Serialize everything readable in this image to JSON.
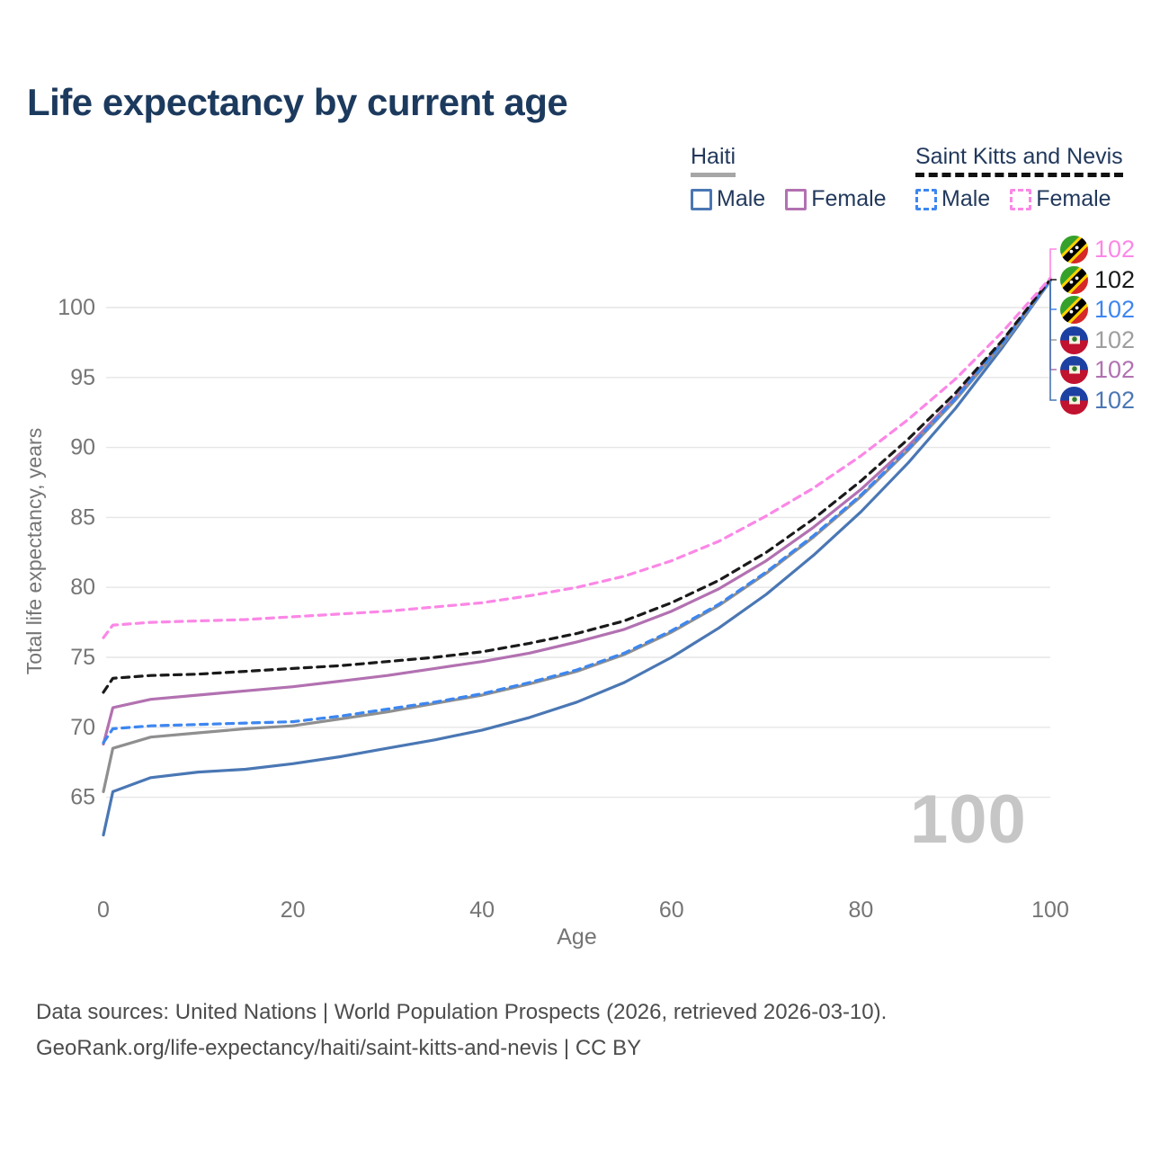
{
  "title": "Life expectancy by current age",
  "legend": {
    "groups": [
      {
        "name": "Haiti",
        "underline_style": "solid",
        "items": [
          {
            "label": "Male",
            "color": "#4a77b4",
            "dashed": false
          },
          {
            "label": "Female",
            "color": "#b271b1",
            "dashed": false
          }
        ]
      },
      {
        "name": "Saint Kitts and Nevis",
        "underline_style": "dashed",
        "items": [
          {
            "label": "Male",
            "color": "#3d86f0",
            "dashed": true
          },
          {
            "label": "Female",
            "color": "#fb87e6",
            "dashed": true
          }
        ]
      }
    ]
  },
  "chart_data": {
    "type": "line",
    "xlabel": "Age",
    "ylabel": "Total life expectancy, years",
    "xlim": [
      0,
      100
    ],
    "ylim": [
      62,
      103
    ],
    "x_ticks": [
      0,
      20,
      40,
      60,
      80,
      100
    ],
    "y_ticks": [
      65,
      70,
      75,
      80,
      85,
      90,
      95,
      100
    ],
    "grid": "horizontal-only",
    "legend_position": "top-right",
    "watermark": "100",
    "x": [
      0,
      1,
      5,
      10,
      15,
      20,
      25,
      30,
      35,
      40,
      45,
      50,
      55,
      60,
      65,
      70,
      75,
      80,
      85,
      90,
      95,
      100
    ],
    "series": [
      {
        "name": "Haiti Male",
        "country": "Haiti",
        "sex": "Male",
        "color": "#4a77b4",
        "dash": false,
        "values": [
          62.3,
          65.4,
          66.4,
          66.8,
          67.0,
          67.4,
          67.9,
          68.5,
          69.1,
          69.8,
          70.7,
          71.8,
          73.2,
          75.0,
          77.1,
          79.5,
          82.3,
          85.4,
          88.9,
          92.8,
          97.2,
          101.9
        ],
        "end_label": "102"
      },
      {
        "name": "Haiti Female",
        "country": "Haiti",
        "sex": "Female",
        "color": "#b271b1",
        "dash": false,
        "values": [
          68.8,
          71.4,
          72.0,
          72.3,
          72.6,
          72.9,
          73.3,
          73.7,
          74.2,
          74.7,
          75.3,
          76.1,
          77.0,
          78.3,
          79.9,
          81.9,
          84.3,
          87.0,
          90.1,
          93.6,
          97.6,
          101.9
        ],
        "end_label": "102"
      },
      {
        "name": "Haiti Both sexes",
        "country": "Haiti",
        "sex": "Both",
        "color": "#8f8f8f",
        "dash": false,
        "values": [
          65.4,
          68.5,
          69.3,
          69.6,
          69.9,
          70.1,
          70.6,
          71.1,
          71.7,
          72.3,
          73.1,
          74.0,
          75.2,
          76.8,
          78.7,
          81.0,
          83.6,
          86.5,
          89.8,
          93.4,
          97.4,
          101.9
        ],
        "end_label": "102"
      },
      {
        "name": "Saint Kitts and Nevis Male",
        "country": "Saint Kitts and Nevis",
        "sex": "Male",
        "color": "#3d86f0",
        "dash": true,
        "values": [
          68.9,
          69.9,
          70.1,
          70.2,
          70.3,
          70.4,
          70.8,
          71.3,
          71.8,
          72.4,
          73.2,
          74.1,
          75.3,
          76.9,
          78.8,
          81.1,
          83.7,
          86.6,
          89.9,
          93.5,
          97.5,
          101.9
        ],
        "end_label": "102"
      },
      {
        "name": "Saint Kitts and Nevis Both sexes",
        "country": "Saint Kitts and Nevis",
        "sex": "Both",
        "color": "#1a1a1a",
        "dash": true,
        "values": [
          72.5,
          73.5,
          73.7,
          73.8,
          74.0,
          74.2,
          74.4,
          74.7,
          75.0,
          75.4,
          76.0,
          76.7,
          77.6,
          78.9,
          80.5,
          82.5,
          84.9,
          87.6,
          90.6,
          93.9,
          97.7,
          102.0
        ],
        "end_label": "102"
      },
      {
        "name": "Saint Kitts and Nevis Female",
        "country": "Saint Kitts and Nevis",
        "sex": "Female",
        "color": "#fb87e6",
        "dash": true,
        "values": [
          76.4,
          77.3,
          77.5,
          77.6,
          77.7,
          77.9,
          78.1,
          78.3,
          78.6,
          78.9,
          79.4,
          80.0,
          80.8,
          81.9,
          83.3,
          85.1,
          87.1,
          89.4,
          92.0,
          94.9,
          98.3,
          102.1
        ],
        "end_label": "102"
      }
    ]
  },
  "end_labels": [
    {
      "flag": "saint-kitts-and-nevis",
      "value": "102",
      "color": "#fb87e6",
      "series": 5
    },
    {
      "flag": "saint-kitts-and-nevis",
      "value": "102",
      "color": "#1a1a1a",
      "series": 4
    },
    {
      "flag": "saint-kitts-and-nevis",
      "value": "102",
      "color": "#3d86f0",
      "series": 3
    },
    {
      "flag": "haiti",
      "value": "102",
      "color": "#9e9e9e",
      "series": 2
    },
    {
      "flag": "haiti",
      "value": "102",
      "color": "#b271b1",
      "series": 1
    },
    {
      "flag": "haiti",
      "value": "102",
      "color": "#4a77b4",
      "series": 0
    }
  ],
  "footer": {
    "line1": "Data sources: United Nations | World Population Prospects (2026, retrieved 2026-03-10).",
    "line2": "GeoRank.org/life-expectancy/haiti/saint-kitts-and-nevis | CC BY"
  }
}
